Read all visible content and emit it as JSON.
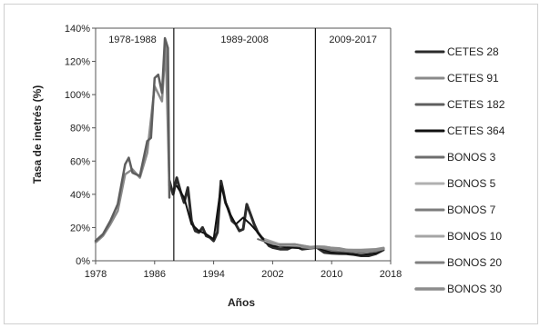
{
  "chart_data": {
    "type": "line",
    "title": "",
    "xlabel": "Años",
    "ylabel": "Tasa de inetrés (%)",
    "xlim": [
      1978,
      2018
    ],
    "ylim": [
      0,
      140
    ],
    "x_ticks": [
      1978,
      1986,
      1994,
      2002,
      2010,
      2018
    ],
    "y_ticks": [
      0,
      20,
      40,
      60,
      80,
      100,
      120,
      140
    ],
    "y_tick_labels": [
      "0%",
      "20%",
      "40%",
      "60%",
      "80%",
      "100%",
      "120%",
      "140%"
    ],
    "grid": false,
    "legend_position": "right",
    "periods": [
      {
        "label": "1978-1988",
        "start": 1978,
        "end": 1988
      },
      {
        "label": "1989-2008",
        "start": 1988.6,
        "end": 2007.8
      },
      {
        "label": "2009-2017",
        "start": 2007.8,
        "end": 2018
      }
    ],
    "period_dividers": [
      1988.6,
      2007.8
    ],
    "series": [
      {
        "name": "CETES 28",
        "color": "#2b2b2b",
        "width": 3,
        "x": [
          1988,
          1988.5,
          1989,
          1989.5,
          1990,
          1990.5,
          1991,
          1991.5,
          1992,
          1992.5,
          1993,
          1993.5,
          1994,
          1994.5,
          1995,
          1995.3,
          1995.6,
          1996,
          1996.5,
          1997,
          1997.5,
          1998,
          1998.5,
          1999,
          1999.5,
          2000,
          2000.5,
          2001,
          2001.5,
          2002,
          2003,
          2004,
          2005,
          2006,
          2007,
          2008,
          2009,
          2010,
          2011,
          2012,
          2013,
          2014,
          2015,
          2016,
          2017
        ],
        "y": [
          48,
          40,
          50,
          42,
          35,
          44,
          24,
          18,
          17,
          20,
          15,
          14,
          12,
          17,
          48,
          42,
          35,
          31,
          24,
          22,
          18,
          19,
          34,
          28,
          22,
          17,
          14,
          12,
          9,
          8,
          7,
          7,
          9,
          7,
          7.5,
          8,
          5,
          4.5,
          4.3,
          4.2,
          3.8,
          3,
          3,
          4.2,
          6.5
        ]
      },
      {
        "name": "CETES 91",
        "color": "#8a8a8a",
        "width": 2.5,
        "x": [
          1978,
          1979,
          1980,
          1981,
          1982,
          1983,
          1984,
          1985,
          1986,
          1987,
          1987.5,
          1988
        ],
        "y": [
          11,
          15,
          22,
          30,
          52,
          55,
          50,
          65,
          105,
          96,
          130,
          45
        ]
      },
      {
        "name": "CETES 182",
        "color": "#5e5e5e",
        "width": 2.5,
        "x": [
          1978,
          1979,
          1980,
          1981,
          1982,
          1982.5,
          1983,
          1984,
          1985,
          1985.5,
          1986,
          1986.5,
          1987,
          1987.4,
          1987.8,
          1988
        ],
        "y": [
          12,
          16,
          24,
          34,
          58,
          62,
          53,
          51,
          72,
          74,
          110,
          112,
          101,
          134,
          128,
          38
        ]
      },
      {
        "name": "CETES 364",
        "color": "#111111",
        "width": 2,
        "x": [
          1989,
          1990,
          1991,
          1992,
          1993,
          1994,
          1995,
          1996,
          1997,
          1998,
          1999,
          2000,
          2001,
          2002,
          2004,
          2006,
          2008,
          2010,
          2012,
          2014,
          2016,
          2017
        ],
        "y": [
          45,
          38,
          22,
          18,
          16,
          13,
          45,
          30,
          22,
          26,
          22,
          17,
          11,
          9,
          8,
          7.5,
          8,
          5,
          4.5,
          3.5,
          4.5,
          7
        ]
      },
      {
        "name": "BONOS 3",
        "color": "#6e6e6e",
        "width": 2,
        "x": [
          2000,
          2002,
          2004,
          2006,
          2008,
          2010,
          2012,
          2014,
          2016,
          2017
        ],
        "y": [
          13,
          10,
          9,
          8.5,
          8.5,
          6,
          5.5,
          4.8,
          5.5,
          7
        ]
      },
      {
        "name": "BONOS 5",
        "color": "#b0b0b0",
        "width": 2,
        "x": [
          2001,
          2003,
          2005,
          2007,
          2009,
          2011,
          2013,
          2015,
          2017
        ],
        "y": [
          12,
          9,
          9.5,
          8,
          8,
          6.5,
          5.8,
          5.8,
          7
        ]
      },
      {
        "name": "BONOS 7",
        "color": "#7c7c7c",
        "width": 2,
        "x": [
          2001,
          2003,
          2005,
          2007,
          2009,
          2011,
          2013,
          2015,
          2017
        ],
        "y": [
          12.5,
          9.5,
          10,
          8.3,
          8.3,
          6.8,
          6,
          6,
          7.2
        ]
      },
      {
        "name": "BONOS 10",
        "color": "#a5a5a5",
        "width": 2,
        "x": [
          2001,
          2003,
          2005,
          2007,
          2009,
          2011,
          2013,
          2015,
          2017
        ],
        "y": [
          13,
          10,
          10,
          8.5,
          8.5,
          7,
          6,
          6.2,
          7.3
        ]
      },
      {
        "name": "BONOS 20",
        "color": "#808080",
        "width": 2,
        "x": [
          2003,
          2005,
          2007,
          2009,
          2011,
          2013,
          2015,
          2017
        ],
        "y": [
          10,
          10,
          8.5,
          8.5,
          7.2,
          6.2,
          6.5,
          7.5
        ]
      },
      {
        "name": "BONOS 30",
        "color": "#8c8c8c",
        "width": 3.5,
        "x": [
          2006,
          2007,
          2008,
          2009,
          2010,
          2011,
          2012,
          2013,
          2014,
          2015,
          2016,
          2017
        ],
        "y": [
          8.5,
          8,
          8.3,
          8.2,
          7.5,
          7.3,
          6.4,
          6.3,
          6.3,
          6.5,
          6.7,
          7.5
        ]
      }
    ]
  }
}
